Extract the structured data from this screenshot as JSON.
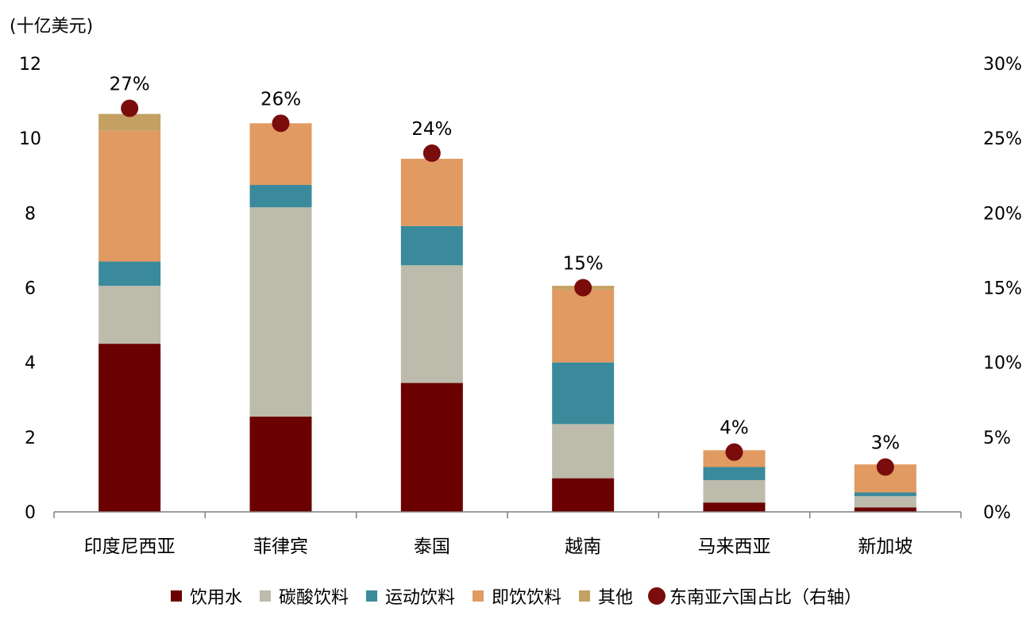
{
  "chart_data": {
    "type": "bar",
    "stacked": true,
    "y_unit_label": "(十亿美元)",
    "categories": [
      "印度尼西亚",
      "菲律宾",
      "泰国",
      "越南",
      "马来西亚",
      "新加坡"
    ],
    "series": [
      {
        "name": "饮用水",
        "color": "#6b0000",
        "values": [
          4.5,
          2.55,
          3.45,
          0.9,
          0.25,
          0.12
        ]
      },
      {
        "name": "碳酸饮料",
        "color": "#bcbbac",
        "values": [
          1.55,
          5.6,
          3.15,
          1.45,
          0.6,
          0.3
        ]
      },
      {
        "name": "运动饮料",
        "color": "#3a8a9c",
        "values": [
          0.65,
          0.6,
          1.05,
          1.65,
          0.35,
          0.1
        ]
      },
      {
        "name": "即饮饮料",
        "color": "#e09a62",
        "values": [
          3.5,
          1.65,
          1.8,
          1.95,
          0.45,
          0.75
        ]
      },
      {
        "name": "其他",
        "color": "#c4a062",
        "values": [
          0.45,
          0.0,
          0.0,
          0.1,
          0.0,
          0.0
        ]
      }
    ],
    "share_series": {
      "name": "东南亚六国占比（右轴）",
      "color": "#7a0c0c",
      "values": [
        27,
        26,
        24,
        15,
        4,
        3
      ],
      "labels": [
        "27%",
        "26%",
        "24%",
        "15%",
        "4%",
        "3%"
      ]
    },
    "y_left": {
      "min": 0,
      "max": 12,
      "ticks": [
        "0",
        "2",
        "4",
        "6",
        "8",
        "10",
        "12"
      ]
    },
    "y_right": {
      "min": 0,
      "max": 30,
      "ticks": [
        "0%",
        "5%",
        "10%",
        "15%",
        "20%",
        "25%",
        "30%"
      ]
    },
    "grid": false,
    "legend_position": "bottom"
  }
}
